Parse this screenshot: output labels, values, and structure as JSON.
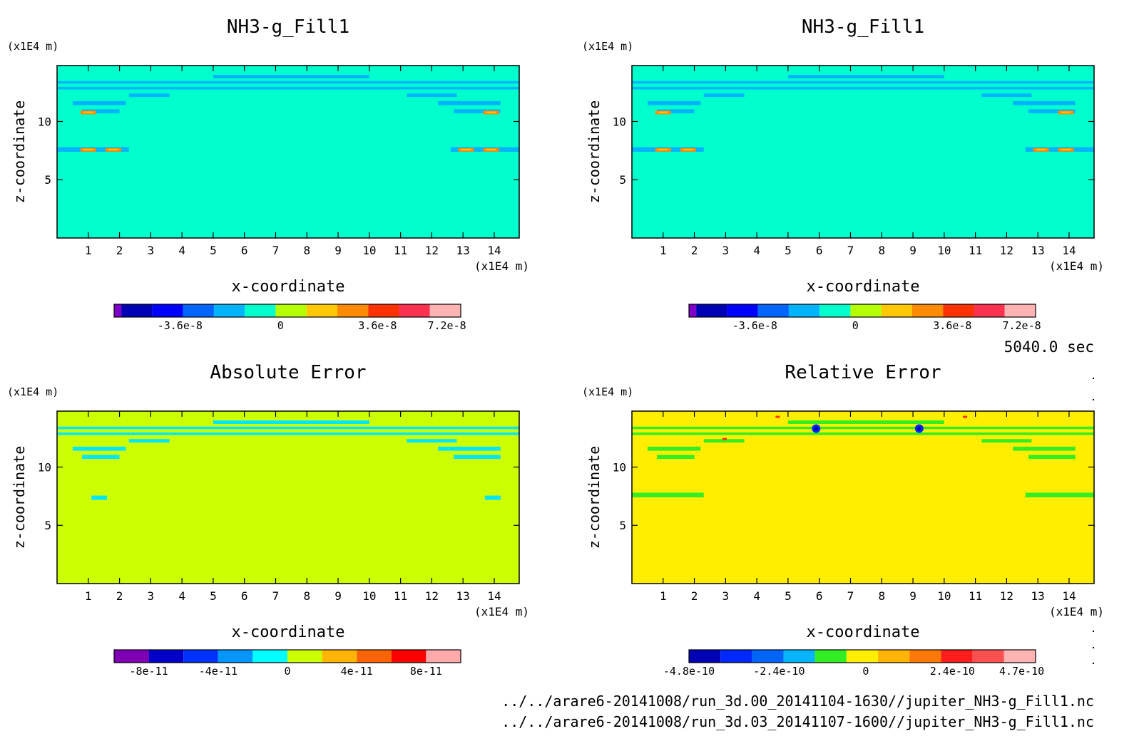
{
  "panels": [
    {
      "title": "NH3-g_Fill1",
      "kind": "field",
      "background": "#00ffcc",
      "band_color": "#00b4ff",
      "unit": "(x1E4 m)",
      "xlabel": "x-coordinate",
      "ylabel": "z-coordinate",
      "colorbar": {
        "colors": [
          "#7f00c8",
          "#0000b4",
          "#0000ff",
          "#0064ff",
          "#00b4ff",
          "#00ffcc",
          "#b4ff00",
          "#ffc800",
          "#ff8c00",
          "#ff3200",
          "#ff3250",
          "#ffb4b4"
        ],
        "labels": [
          "-3.6e-8",
          "0",
          "3.6e-8",
          "7.2e-8"
        ]
      }
    },
    {
      "title": "NH3-g_Fill1",
      "kind": "field",
      "background": "#00ffcc",
      "band_color": "#00b4ff",
      "unit": "(x1E4 m)",
      "xlabel": "x-coordinate",
      "ylabel": "z-coordinate",
      "colorbar": {
        "colors": [
          "#7f00c8",
          "#0000b4",
          "#0000ff",
          "#0064ff",
          "#00b4ff",
          "#00ffcc",
          "#b4ff00",
          "#ffc800",
          "#ff8c00",
          "#ff3200",
          "#ff3250",
          "#ffb4b4"
        ],
        "labels": [
          "-3.6e-8",
          "0",
          "3.6e-8",
          "7.2e-8"
        ]
      }
    },
    {
      "title": "Absolute Error",
      "kind": "abs",
      "background": "#ccff00",
      "band_color": "#00e6ff",
      "unit": "(x1E4 m)",
      "xlabel": "x-coordinate",
      "ylabel": "z-coordinate",
      "colorbar": {
        "colors": [
          "#7f00b4",
          "#0000c8",
          "#0032ff",
          "#0096ff",
          "#00ffff",
          "#ccff00",
          "#ffb400",
          "#ff6400",
          "#ff0000",
          "#ffaaaa"
        ],
        "labels": [
          "-8e-11",
          "-4e-11",
          "0",
          "4e-11",
          "8e-11"
        ]
      }
    },
    {
      "title": "Relative Error",
      "kind": "rel",
      "background": "#ffee00",
      "band_color": "#33ee22",
      "unit": "(x1E4 m)",
      "xlabel": "x-coordinate",
      "ylabel": "z-coordinate",
      "colorbar": {
        "colors": [
          "#0000b4",
          "#0028ff",
          "#0064ff",
          "#00b4ff",
          "#33ee22",
          "#ffee00",
          "#ffb400",
          "#ff7800",
          "#ff1e1e",
          "#ff5050",
          "#ffb4b4"
        ],
        "labels": [
          "-4.8e-10",
          "-2.4e-10",
          "0",
          "2.4e-10",
          "4.7e-10"
        ]
      }
    }
  ],
  "time_label": "5040.0 sec",
  "footer": {
    "line1": "../../arare6-20141008/run_3d.00_20141104-1630//jupiter_NH3-g_Fill1.nc",
    "line2": "../../arare6-20141008/run_3d.03_20141107-1600//jupiter_NH3-g_Fill1.nc"
  },
  "chart_data": [
    {
      "type": "heatmap",
      "title": "NH3-g_Fill1",
      "xlabel": "x-coordinate",
      "ylabel": "z-coordinate",
      "xunit": "(x1E4 m)",
      "zunit": "(x1E4 m)",
      "xlim": [
        0,
        14.8
      ],
      "ylim": [
        0,
        14.8
      ],
      "x_ticks": [
        1,
        2,
        3,
        4,
        5,
        6,
        7,
        8,
        9,
        10,
        11,
        12,
        13,
        14
      ],
      "y_ticks": [
        5,
        10
      ],
      "colorbar_ticks": [
        "-3.6e-8",
        "0",
        "3.6e-8",
        "7.2e-8"
      ]
    },
    {
      "type": "heatmap",
      "title": "NH3-g_Fill1",
      "xlabel": "x-coordinate",
      "ylabel": "z-coordinate",
      "xunit": "(x1E4 m)",
      "zunit": "(x1E4 m)",
      "xlim": [
        0,
        14.8
      ],
      "ylim": [
        0,
        14.8
      ],
      "x_ticks": [
        1,
        2,
        3,
        4,
        5,
        6,
        7,
        8,
        9,
        10,
        11,
        12,
        13,
        14
      ],
      "y_ticks": [
        5,
        10
      ],
      "colorbar_ticks": [
        "-3.6e-8",
        "0",
        "3.6e-8",
        "7.2e-8"
      ]
    },
    {
      "type": "heatmap",
      "title": "Absolute Error",
      "xlabel": "x-coordinate",
      "ylabel": "z-coordinate",
      "xunit": "(x1E4 m)",
      "zunit": "(x1E4 m)",
      "xlim": [
        0,
        14.8
      ],
      "ylim": [
        0,
        14.8
      ],
      "x_ticks": [
        1,
        2,
        3,
        4,
        5,
        6,
        7,
        8,
        9,
        10,
        11,
        12,
        13,
        14
      ],
      "y_ticks": [
        5,
        10
      ],
      "colorbar_ticks": [
        "-8e-11",
        "-4e-11",
        "0",
        "4e-11",
        "8e-11"
      ]
    },
    {
      "type": "heatmap",
      "title": "Relative Error",
      "xlabel": "x-coordinate",
      "ylabel": "z-coordinate",
      "xunit": "(x1E4 m)",
      "zunit": "(x1E4 m)",
      "xlim": [
        0,
        14.8
      ],
      "ylim": [
        0,
        14.8
      ],
      "x_ticks": [
        1,
        2,
        3,
        4,
        5,
        6,
        7,
        8,
        9,
        10,
        11,
        12,
        13,
        14
      ],
      "y_ticks": [
        5,
        10
      ],
      "colorbar_ticks": [
        "-4.8e-10",
        "-2.4e-10",
        "0",
        "2.4e-10",
        "4.7e-10"
      ]
    }
  ]
}
